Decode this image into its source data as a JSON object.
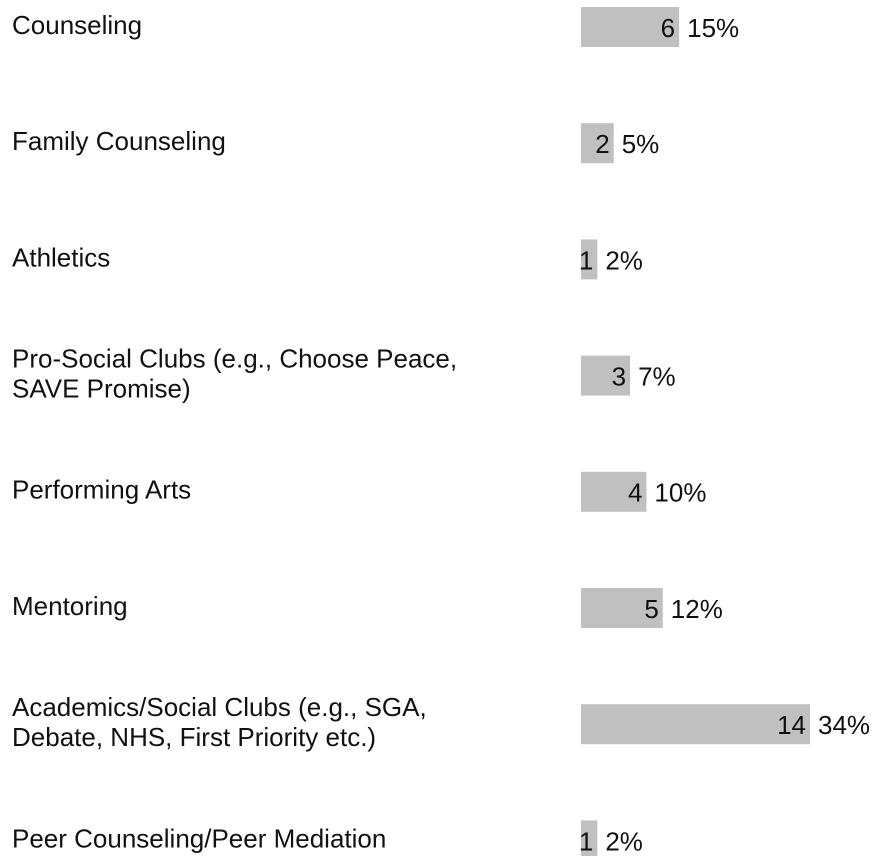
{
  "chart_data": {
    "type": "bar",
    "categories": [
      [
        "Counseling"
      ],
      [
        "Family Counseling"
      ],
      [
        "Athletics"
      ],
      [
        "Pro-Social Clubs (e.g., Choose Peace,",
        "SAVE Promise)"
      ],
      [
        "Performing Arts"
      ],
      [
        "Mentoring"
      ],
      [
        "Academics/Social Clubs (e.g., SGA,",
        "Debate, NHS, First Priority etc.)"
      ],
      [
        "Peer Counseling/Peer Mediation"
      ]
    ],
    "values": [
      6,
      2,
      1,
      3,
      4,
      5,
      14,
      1
    ],
    "percent_labels": [
      "15%",
      "5%",
      "2%",
      "7%",
      "10%",
      "12%",
      "34%",
      "2%"
    ],
    "color": "#c0c0c0"
  }
}
